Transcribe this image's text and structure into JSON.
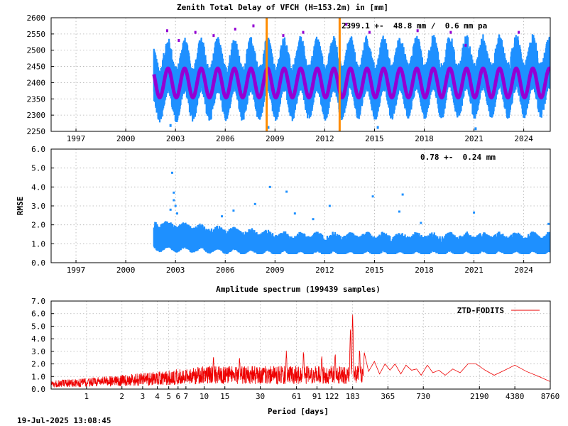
{
  "chart_data": [
    {
      "type": "scatter",
      "title": "Zenith Total Delay of VFCH (H=153.2m) in [mm]",
      "annotation": "2399.1 +-  48.8 mm /  0.6 mm pa",
      "xlim": [
        1995.5,
        2025.6
      ],
      "ylim": [
        2250,
        2600
      ],
      "x_ticks": [
        1997,
        2000,
        2003,
        2006,
        2009,
        2012,
        2015,
        2018,
        2021,
        2024
      ],
      "x_tick_labels": [
        "1997",
        "2000",
        "2003",
        "2006",
        "2009",
        "2012",
        "2015",
        "2018",
        "2021",
        "2024"
      ],
      "y_ticks": [
        2250,
        2300,
        2350,
        2400,
        2450,
        2500,
        2550,
        2600
      ],
      "y_tick_labels": [
        "2250",
        "2300",
        "2350",
        "2400",
        "2450",
        "2500",
        "2550",
        "2600"
      ],
      "grid": true,
      "series": [
        {
          "color": "#1e90ff",
          "x_start": 2001.7,
          "x_end": 2025.6,
          "mean": 2399.1,
          "annual_amplitude": 45,
          "scatter": 60,
          "trend_mm_per_year": 0.6
        },
        {
          "color": "#9400d3",
          "x_start": 2001.7,
          "x_end": 2025.6,
          "mean": 2399.1,
          "annual_amplitude": 45
        }
      ],
      "outliers": [
        {
          "x": 2002.5,
          "y": 2560
        },
        {
          "x": 2003.2,
          "y": 2530
        },
        {
          "x": 2004.2,
          "y": 2555
        },
        {
          "x": 2005.3,
          "y": 2545
        },
        {
          "x": 2006.6,
          "y": 2565
        },
        {
          "x": 2007.7,
          "y": 2575
        },
        {
          "x": 2009.5,
          "y": 2545
        },
        {
          "x": 2010.7,
          "y": 2555
        },
        {
          "x": 2013.3,
          "y": 2580
        },
        {
          "x": 2014.7,
          "y": 2555
        },
        {
          "x": 2017.6,
          "y": 2560
        },
        {
          "x": 2019.6,
          "y": 2555
        },
        {
          "x": 2020.5,
          "y": 2515
        },
        {
          "x": 2023.7,
          "y": 2555
        },
        {
          "x": 2002.7,
          "y": 2268
        },
        {
          "x": 2008.6,
          "y": 2262
        },
        {
          "x": 2015.2,
          "y": 2262
        },
        {
          "x": 2021.1,
          "y": 2258
        }
      ],
      "vertical_markers": [
        {
          "x": 2008.5,
          "color": "#ff8c00"
        },
        {
          "x": 2012.9,
          "color": "#ff8c00"
        }
      ]
    },
    {
      "type": "scatter",
      "ylabel": "RMSE",
      "annotation": "0.78 +-  0.24 mm",
      "xlim": [
        1995.5,
        2025.6
      ],
      "ylim": [
        0,
        6
      ],
      "x_ticks": [
        1997,
        2000,
        2003,
        2006,
        2009,
        2012,
        2015,
        2018,
        2021,
        2024
      ],
      "x_tick_labels": [
        "1997",
        "2000",
        "2003",
        "2006",
        "2009",
        "2012",
        "2015",
        "2018",
        "2021",
        "2024"
      ],
      "y_ticks": [
        0,
        1,
        2,
        3,
        4,
        5,
        6
      ],
      "y_tick_labels": [
        "0.0",
        "1.0",
        "2.0",
        "3.0",
        "4.0",
        "5.0",
        "6.0"
      ],
      "grid": true,
      "series": [
        {
          "color": "#1e90ff",
          "x_start": 2001.7,
          "x_end": 2025.6,
          "mean": 0.78,
          "sigma": 0.24
        }
      ],
      "outliers": [
        {
          "x": 2002.8,
          "y": 4.75
        },
        {
          "x": 2002.9,
          "y": 3.7
        },
        {
          "x": 2002.9,
          "y": 3.3
        },
        {
          "x": 2003.0,
          "y": 3.0
        },
        {
          "x": 2002.7,
          "y": 2.8
        },
        {
          "x": 2003.1,
          "y": 2.6
        },
        {
          "x": 2006.5,
          "y": 2.75
        },
        {
          "x": 2007.8,
          "y": 3.1
        },
        {
          "x": 2008.7,
          "y": 4.0
        },
        {
          "x": 2009.7,
          "y": 3.75
        },
        {
          "x": 2010.2,
          "y": 2.6
        },
        {
          "x": 2012.3,
          "y": 3.0
        },
        {
          "x": 2014.9,
          "y": 3.5
        },
        {
          "x": 2016.7,
          "y": 3.6
        },
        {
          "x": 2016.5,
          "y": 2.7
        },
        {
          "x": 2021.0,
          "y": 2.65
        },
        {
          "x": 2005.8,
          "y": 2.45
        },
        {
          "x": 2011.3,
          "y": 2.3
        },
        {
          "x": 2017.8,
          "y": 2.1
        },
        {
          "x": 2025.5,
          "y": 2.05
        }
      ]
    },
    {
      "type": "line",
      "title": "Amplitude spectrum (199439 samples)",
      "xlabel": "Period [days]",
      "legend": "ZTD-FODITS",
      "legend_position": "top-right",
      "xscale": "log",
      "xlim": [
        0.5,
        8760
      ],
      "ylim": [
        0,
        7
      ],
      "x_ticks": [
        1,
        2,
        3,
        4,
        5,
        6,
        7,
        10,
        15,
        30,
        61,
        91,
        122,
        183,
        365,
        730,
        2190,
        4380,
        8760
      ],
      "x_tick_labels": [
        "1",
        "2",
        "3",
        "4",
        "5",
        "6",
        "7",
        "10",
        "15",
        "30",
        "61",
        "91",
        "122",
        "183",
        "365",
        "730",
        "2190",
        "4380",
        "8760"
      ],
      "y_ticks": [
        0,
        1,
        2,
        3,
        4,
        5,
        6,
        7
      ],
      "y_tick_labels": [
        "0.0",
        "1.0",
        "2.0",
        "3.0",
        "4.0",
        "5.0",
        "6.0",
        "7.0"
      ],
      "grid": true,
      "series": [
        {
          "color": "#ee0000",
          "peaks": [
            {
              "x": 183,
              "y": 6.4
            },
            {
              "x": 175,
              "y": 5.0
            },
            {
              "x": 130,
              "y": 2.9
            },
            {
              "x": 100,
              "y": 2.8
            },
            {
              "x": 70,
              "y": 3.2
            },
            {
              "x": 50,
              "y": 3.1
            },
            {
              "x": 20,
              "y": 2.6
            },
            {
              "x": 12,
              "y": 2.6
            },
            {
              "x": 210,
              "y": 3.3
            }
          ],
          "long_period": [
            [
              230,
              2.9
            ],
            [
              250,
              1.4
            ],
            [
              280,
              2.2
            ],
            [
              310,
              1.2
            ],
            [
              345,
              2.0
            ],
            [
              380,
              1.5
            ],
            [
              420,
              2.0
            ],
            [
              470,
              1.2
            ],
            [
              520,
              1.9
            ],
            [
              580,
              1.5
            ],
            [
              640,
              1.6
            ],
            [
              700,
              1.1
            ],
            [
              790,
              1.9
            ],
            [
              880,
              1.3
            ],
            [
              990,
              1.5
            ],
            [
              1120,
              1.1
            ],
            [
              1300,
              1.6
            ],
            [
              1500,
              1.3
            ],
            [
              1750,
              2.0
            ],
            [
              2050,
              2.0
            ],
            [
              2450,
              1.5
            ],
            [
              2920,
              1.1
            ],
            [
              3600,
              1.5
            ],
            [
              4380,
              1.9
            ],
            [
              5500,
              1.4
            ],
            [
              7000,
              1.0
            ],
            [
              8760,
              0.6
            ]
          ]
        }
      ]
    }
  ],
  "footer": {
    "timestamp": "19-Jul-2025 13:08:45"
  }
}
